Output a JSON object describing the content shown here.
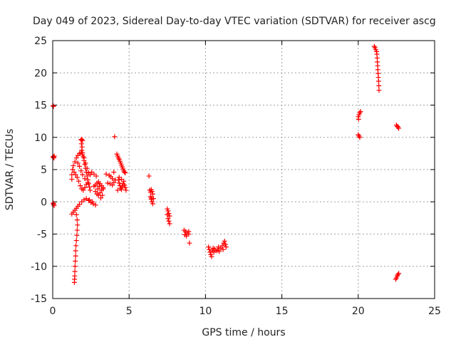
{
  "chart_data": {
    "type": "scatter",
    "title": "Day 049 of 2023, Sidereal Day-to-day VTEC variation (SDTVAR) for receiver ascg",
    "xlabel": "GPS time / hours",
    "ylabel": "SDTVAR / TECUs",
    "xlim": [
      0,
      25
    ],
    "ylim": [
      -15,
      25
    ],
    "xticks": [
      0,
      5,
      10,
      15,
      20,
      25
    ],
    "yticks": [
      -15,
      -10,
      -5,
      0,
      5,
      10,
      15,
      20,
      25
    ],
    "xtick_labels": [
      "0",
      "5",
      "10",
      "15",
      "20",
      "25"
    ],
    "ytick_labels": [
      "-15",
      "-10",
      "-5",
      "0",
      "5",
      "10",
      "15",
      "20",
      "25"
    ],
    "grid": true,
    "marker": "plus",
    "marker_color": "#ff0000",
    "series": [
      {
        "name": "SDTVAR",
        "points": [
          [
            0.02,
            14.9
          ],
          [
            0.05,
            14.8
          ],
          [
            0.02,
            7.0
          ],
          [
            0.05,
            6.9
          ],
          [
            0.08,
            6.8
          ],
          [
            0.1,
            7.1
          ],
          [
            0.03,
            -0.2
          ],
          [
            0.06,
            -0.4
          ],
          [
            0.09,
            -0.6
          ],
          [
            0.05,
            -0.3
          ],
          [
            1.25,
            -1.9
          ],
          [
            1.35,
            -1.6
          ],
          [
            1.45,
            -1.3
          ],
          [
            1.55,
            -1.0
          ],
          [
            1.65,
            -0.7
          ],
          [
            1.75,
            -0.4
          ],
          [
            1.9,
            0.0
          ],
          [
            2.05,
            0.3
          ],
          [
            2.2,
            0.5
          ],
          [
            2.35,
            0.2
          ],
          [
            2.5,
            -0.1
          ],
          [
            2.65,
            -0.3
          ],
          [
            2.8,
            -0.5
          ],
          [
            2.6,
            0.0
          ],
          [
            2.4,
            0.3
          ],
          [
            1.25,
            3.5
          ],
          [
            1.25,
            4.2
          ],
          [
            1.3,
            5.0
          ],
          [
            1.35,
            5.6
          ],
          [
            1.45,
            6.2
          ],
          [
            1.55,
            6.8
          ],
          [
            1.65,
            7.2
          ],
          [
            1.75,
            7.5
          ],
          [
            1.85,
            7.6
          ],
          [
            1.95,
            7.3
          ],
          [
            2.05,
            6.8
          ],
          [
            2.15,
            6.0
          ],
          [
            2.25,
            5.2
          ],
          [
            2.35,
            4.5
          ],
          [
            2.45,
            4.2
          ],
          [
            2.55,
            4.6
          ],
          [
            2.7,
            4.3
          ],
          [
            2.85,
            4.0
          ],
          [
            1.4,
            4.6
          ],
          [
            1.5,
            4.2
          ],
          [
            1.6,
            3.8
          ],
          [
            1.7,
            3.2
          ],
          [
            1.8,
            2.5
          ],
          [
            1.9,
            2.0
          ],
          [
            2.0,
            1.8
          ],
          [
            2.1,
            2.2
          ],
          [
            2.2,
            2.7
          ],
          [
            2.3,
            3.0
          ],
          [
            2.1,
            3.6
          ],
          [
            1.95,
            4.2
          ],
          [
            1.85,
            4.8
          ],
          [
            1.75,
            5.5
          ],
          [
            1.65,
            6.0
          ],
          [
            1.85,
            9.6
          ],
          [
            1.9,
            9.7
          ],
          [
            1.95,
            9.5
          ],
          [
            1.88,
            9.0
          ],
          [
            1.92,
            8.5
          ],
          [
            1.9,
            8.0
          ],
          [
            1.95,
            7.6
          ],
          [
            2.0,
            7.0
          ],
          [
            2.05,
            6.4
          ],
          [
            2.1,
            5.8
          ],
          [
            2.15,
            5.2
          ],
          [
            2.2,
            4.6
          ],
          [
            2.25,
            4.0
          ],
          [
            2.3,
            3.4
          ],
          [
            2.35,
            2.8
          ],
          [
            2.4,
            2.3
          ],
          [
            2.45,
            1.8
          ],
          [
            1.55,
            -2.0
          ],
          [
            1.6,
            -2.8
          ],
          [
            1.62,
            -3.6
          ],
          [
            1.6,
            -4.4
          ],
          [
            1.58,
            -5.2
          ],
          [
            1.55,
            -6.0
          ],
          [
            1.52,
            -6.8
          ],
          [
            1.5,
            -7.6
          ],
          [
            1.5,
            -8.4
          ],
          [
            1.48,
            -9.2
          ],
          [
            1.46,
            -10.0
          ],
          [
            1.45,
            -10.8
          ],
          [
            1.44,
            -11.5
          ],
          [
            1.43,
            -12.0
          ],
          [
            1.42,
            -12.5
          ],
          [
            2.7,
            2.4
          ],
          [
            2.8,
            2.6
          ],
          [
            2.9,
            2.9
          ],
          [
            3.0,
            3.1
          ],
          [
            3.1,
            2.8
          ],
          [
            3.2,
            2.5
          ],
          [
            3.3,
            2.2
          ],
          [
            2.8,
            1.6
          ],
          [
            2.9,
            1.2
          ],
          [
            3.0,
            1.0
          ],
          [
            3.1,
            1.4
          ],
          [
            3.2,
            1.8
          ],
          [
            3.3,
            2.0
          ],
          [
            3.25,
            1.0
          ],
          [
            3.15,
            0.6
          ],
          [
            2.95,
            2.0
          ],
          [
            3.05,
            2.4
          ],
          [
            3.5,
            4.3
          ],
          [
            3.7,
            4.1
          ],
          [
            3.8,
            3.9
          ],
          [
            3.9,
            3.6
          ],
          [
            4.0,
            4.6
          ],
          [
            4.05,
            10.1
          ],
          [
            3.6,
            2.9
          ],
          [
            3.75,
            2.8
          ],
          [
            3.9,
            2.6
          ],
          [
            4.0,
            3.0
          ],
          [
            4.1,
            3.4
          ],
          [
            4.2,
            7.4
          ],
          [
            4.25,
            7.1
          ],
          [
            4.3,
            6.8
          ],
          [
            4.35,
            6.6
          ],
          [
            4.4,
            6.3
          ],
          [
            4.45,
            6.0
          ],
          [
            4.5,
            5.7
          ],
          [
            4.55,
            5.4
          ],
          [
            4.6,
            5.1
          ],
          [
            4.65,
            4.8
          ],
          [
            4.7,
            4.6
          ],
          [
            4.75,
            4.5
          ],
          [
            4.3,
            3.4
          ],
          [
            4.35,
            2.9
          ],
          [
            4.4,
            2.5
          ],
          [
            4.45,
            2.1
          ],
          [
            4.5,
            1.9
          ],
          [
            4.55,
            2.4
          ],
          [
            4.6,
            2.8
          ],
          [
            4.65,
            3.2
          ],
          [
            4.7,
            2.6
          ],
          [
            4.75,
            2.2
          ],
          [
            4.8,
            1.8
          ],
          [
            4.35,
            3.8
          ],
          [
            4.5,
            3.5
          ],
          [
            4.25,
            1.8
          ],
          [
            6.3,
            4.0
          ],
          [
            6.35,
            1.8
          ],
          [
            6.4,
            1.5
          ],
          [
            6.45,
            1.9
          ],
          [
            6.5,
            1.6
          ],
          [
            6.55,
            1.2
          ],
          [
            6.4,
            0.8
          ],
          [
            6.45,
            0.4
          ],
          [
            6.5,
            0.0
          ],
          [
            6.55,
            -0.3
          ],
          [
            6.45,
            0.6
          ],
          [
            6.6,
            0.5
          ],
          [
            7.5,
            -1.1
          ],
          [
            7.55,
            -1.4
          ],
          [
            7.6,
            -1.8
          ],
          [
            7.65,
            -2.2
          ],
          [
            7.55,
            -2.6
          ],
          [
            7.6,
            -3.0
          ],
          [
            7.65,
            -3.4
          ],
          [
            7.5,
            -2.0
          ],
          [
            8.6,
            -4.4
          ],
          [
            8.7,
            -4.6
          ],
          [
            8.8,
            -4.8
          ],
          [
            8.9,
            -4.6
          ],
          [
            8.9,
            -5.0
          ],
          [
            8.65,
            -5.1
          ],
          [
            8.75,
            -5.3
          ],
          [
            8.95,
            -6.4
          ],
          [
            10.2,
            -7.0
          ],
          [
            10.25,
            -7.4
          ],
          [
            10.3,
            -7.8
          ],
          [
            10.35,
            -8.2
          ],
          [
            10.4,
            -8.5
          ],
          [
            10.45,
            -7.6
          ],
          [
            10.5,
            -7.2
          ],
          [
            10.6,
            -7.3
          ],
          [
            10.7,
            -7.6
          ],
          [
            10.8,
            -7.5
          ],
          [
            10.9,
            -7.7
          ],
          [
            11.0,
            -7.2
          ],
          [
            11.1,
            -6.8
          ],
          [
            11.2,
            -6.4
          ],
          [
            11.25,
            -6.1
          ],
          [
            11.3,
            -6.6
          ],
          [
            11.35,
            -7.0
          ],
          [
            11.15,
            -7.4
          ],
          [
            10.55,
            -7.8
          ],
          [
            10.85,
            -7.0
          ],
          [
            20.0,
            13.2
          ],
          [
            20.05,
            13.5
          ],
          [
            20.1,
            13.8
          ],
          [
            20.15,
            14.0
          ],
          [
            20.02,
            12.8
          ],
          [
            20.0,
            10.4
          ],
          [
            20.05,
            10.2
          ],
          [
            20.1,
            10.0
          ],
          [
            21.05,
            24.1
          ],
          [
            21.1,
            23.9
          ],
          [
            21.15,
            23.6
          ],
          [
            21.2,
            23.3
          ],
          [
            21.22,
            22.9
          ],
          [
            21.24,
            22.3
          ],
          [
            21.25,
            21.7
          ],
          [
            21.27,
            21.1
          ],
          [
            21.28,
            20.5
          ],
          [
            21.3,
            19.9
          ],
          [
            21.32,
            19.3
          ],
          [
            21.33,
            18.7
          ],
          [
            21.35,
            18.0
          ],
          [
            21.36,
            17.3
          ],
          [
            22.5,
            11.9
          ],
          [
            22.55,
            11.7
          ],
          [
            22.6,
            11.6
          ],
          [
            22.65,
            11.4
          ],
          [
            22.5,
            -11.8
          ],
          [
            22.55,
            -11.5
          ],
          [
            22.6,
            -11.3
          ],
          [
            22.65,
            -11.1
          ],
          [
            22.45,
            -12.0
          ]
        ]
      }
    ]
  }
}
